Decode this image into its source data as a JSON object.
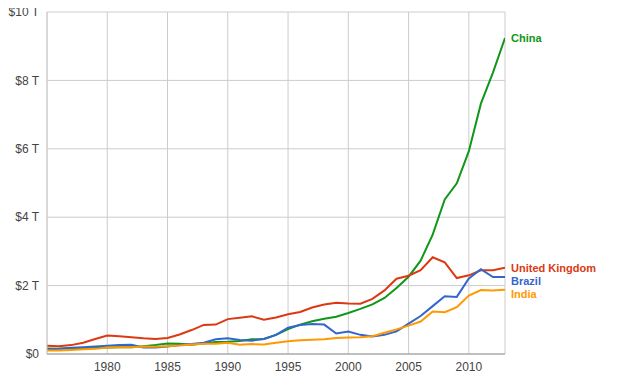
{
  "chart_data": {
    "type": "line",
    "x": [
      1975,
      1976,
      1977,
      1978,
      1979,
      1980,
      1981,
      1982,
      1983,
      1984,
      1985,
      1986,
      1987,
      1988,
      1989,
      1990,
      1991,
      1992,
      1993,
      1994,
      1995,
      1996,
      1997,
      1998,
      1999,
      2000,
      2001,
      2002,
      2003,
      2004,
      2005,
      2006,
      2007,
      2008,
      2009,
      2010,
      2011,
      2012,
      2013
    ],
    "series": [
      {
        "name": "China",
        "color": "#109618",
        "values": [
          0.16,
          0.15,
          0.17,
          0.15,
          0.18,
          0.19,
          0.2,
          0.2,
          0.23,
          0.26,
          0.31,
          0.3,
          0.27,
          0.31,
          0.35,
          0.36,
          0.38,
          0.43,
          0.44,
          0.56,
          0.73,
          0.86,
          0.96,
          1.03,
          1.09,
          1.2,
          1.32,
          1.45,
          1.64,
          1.93,
          2.26,
          2.73,
          3.49,
          4.52,
          4.99,
          5.93,
          7.32,
          8.23,
          9.24
        ]
      },
      {
        "name": "United Kingdom",
        "color": "#dc3912",
        "values": [
          0.24,
          0.23,
          0.26,
          0.33,
          0.44,
          0.54,
          0.52,
          0.49,
          0.46,
          0.44,
          0.47,
          0.57,
          0.7,
          0.85,
          0.86,
          1.02,
          1.06,
          1.1,
          1.0,
          1.07,
          1.16,
          1.23,
          1.36,
          1.45,
          1.5,
          1.48,
          1.47,
          1.61,
          1.86,
          2.2,
          2.29,
          2.45,
          2.83,
          2.68,
          2.22,
          2.3,
          2.45,
          2.45,
          2.52
        ]
      },
      {
        "name": "Brazil",
        "color": "#3366cc",
        "values": [
          0.13,
          0.15,
          0.18,
          0.2,
          0.22,
          0.24,
          0.26,
          0.27,
          0.19,
          0.19,
          0.22,
          0.26,
          0.29,
          0.33,
          0.43,
          0.46,
          0.41,
          0.39,
          0.44,
          0.56,
          0.77,
          0.85,
          0.88,
          0.86,
          0.6,
          0.66,
          0.56,
          0.51,
          0.56,
          0.66,
          0.89,
          1.11,
          1.4,
          1.69,
          1.67,
          2.21,
          2.48,
          2.25,
          2.25
        ]
      },
      {
        "name": "India",
        "color": "#ff9900",
        "values": [
          0.1,
          0.1,
          0.12,
          0.14,
          0.15,
          0.19,
          0.2,
          0.2,
          0.22,
          0.21,
          0.23,
          0.25,
          0.28,
          0.3,
          0.3,
          0.33,
          0.27,
          0.29,
          0.28,
          0.33,
          0.37,
          0.4,
          0.42,
          0.43,
          0.47,
          0.48,
          0.49,
          0.52,
          0.62,
          0.72,
          0.83,
          0.95,
          1.24,
          1.22,
          1.37,
          1.71,
          1.87,
          1.86,
          1.88
        ]
      }
    ],
    "xlim": [
      1975,
      2013
    ],
    "xticks": [
      1980,
      1985,
      1990,
      1995,
      2000,
      2005,
      2010
    ],
    "ylim": [
      0,
      10
    ],
    "yticks": [
      {
        "value": 0,
        "label": "$0"
      },
      {
        "value": 2,
        "label": "$2 T"
      },
      {
        "value": 4,
        "label": "$4 T"
      },
      {
        "value": 6,
        "label": "$6 T"
      },
      {
        "value": 8,
        "label": "$8 T"
      },
      {
        "value": 10,
        "label": "$10 T"
      }
    ],
    "grid": true
  }
}
